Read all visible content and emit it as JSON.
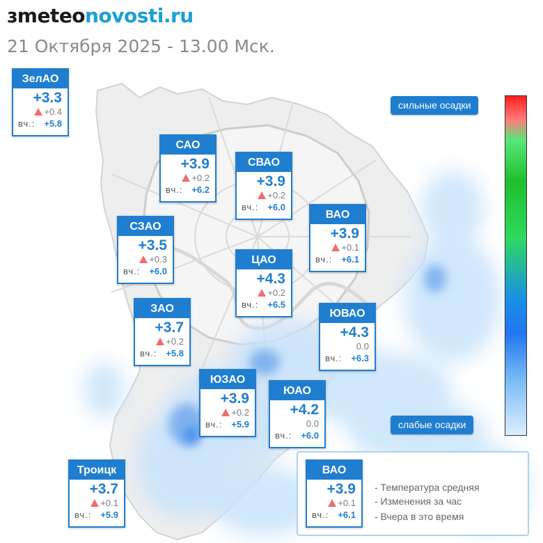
{
  "header": {
    "logo_mark": "ɜ",
    "logo_part1": "meteo",
    "logo_part2": "novosti.ru",
    "datetime": "21 Октября 2025 - 13.00 Мск."
  },
  "colors": {
    "accent": "#1f7ed0",
    "logo_blue": "#1a9fd6",
    "change_up": "#f06d6d",
    "precip_light": "#bfe0fb",
    "precip_heavy": "#2a7ef0"
  },
  "scale": {
    "top_label": "сильные осадки",
    "bottom_label": "слабые осадки",
    "gradient": [
      "#ff2020",
      "#ff7b7b",
      "#59e67a",
      "#1fbf2e",
      "#2fd860",
      "#1a8fe6",
      "#2276f0",
      "#7bbcf5",
      "#dcefff"
    ]
  },
  "districts": [
    {
      "name": "ЗелАО",
      "temp": "+3.3",
      "change": "+0.4",
      "trend": "up",
      "y_label": "вч.:",
      "yesterday": "+5.8"
    },
    {
      "name": "САО",
      "temp": "+3.9",
      "change": "+0.2",
      "trend": "up",
      "y_label": "вч.:",
      "yesterday": "+6.2"
    },
    {
      "name": "СВАО",
      "temp": "+3.9",
      "change": "+0.2",
      "trend": "up",
      "y_label": "вч.:",
      "yesterday": "+6.0"
    },
    {
      "name": "ВАО",
      "temp": "+3.9",
      "change": "+0.1",
      "trend": "up",
      "y_label": "вч.:",
      "yesterday": "+6.1"
    },
    {
      "name": "СЗАО",
      "temp": "+3.5",
      "change": "+0.3",
      "trend": "up",
      "y_label": "вч.:",
      "yesterday": "+6.0"
    },
    {
      "name": "ЦАО",
      "temp": "+4.3",
      "change": "+0.2",
      "trend": "up",
      "y_label": "вч.:",
      "yesterday": "+6.5"
    },
    {
      "name": "ЗАО",
      "temp": "+3.7",
      "change": "+0.2",
      "trend": "up",
      "y_label": "вч.:",
      "yesterday": "+5.8"
    },
    {
      "name": "ЮВАО",
      "temp": "+4.3",
      "change": "0.0",
      "trend": "none",
      "y_label": "вч.:",
      "yesterday": "+6.3"
    },
    {
      "name": "ЮЗАО",
      "temp": "+3.9",
      "change": "+0.2",
      "trend": "up",
      "y_label": "вч.:",
      "yesterday": "+5.9"
    },
    {
      "name": "ЮАО",
      "temp": "+4.2",
      "change": "0.0",
      "trend": "none",
      "y_label": "вч.:",
      "yesterday": "+6.0"
    },
    {
      "name": "Троицк",
      "temp": "+3.7",
      "change": "+0.1",
      "trend": "up",
      "y_label": "вч.:",
      "yesterday": "+5.9"
    }
  ],
  "legend": {
    "sample": {
      "name": "ВАО",
      "temp": "+3.9",
      "change": "+0.1",
      "trend": "up",
      "y_label": "вч.:",
      "yesterday": "+6.1"
    },
    "line1": "- Температура средняя",
    "line2": "- Изменения за час",
    "line3": "- Вчера в это время"
  }
}
